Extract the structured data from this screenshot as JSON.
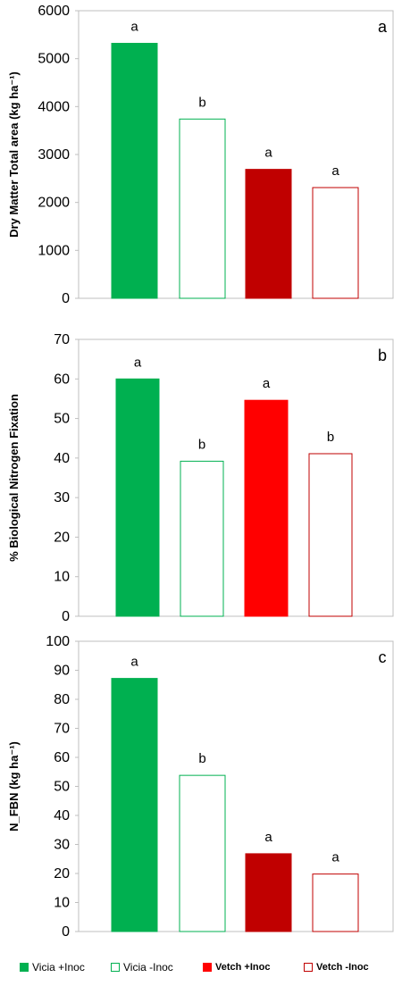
{
  "chart_data": [
    {
      "type": "bar",
      "panel_letter": "a",
      "ylabel": "Dry Matter Total area  (kg ha⁻¹)",
      "ylim": [
        0,
        6000
      ],
      "yticks": [
        0,
        1000,
        2000,
        3000,
        4000,
        5000,
        6000
      ],
      "grid": false,
      "categories": [
        "Vicia +Inoc",
        "Vicia -Inoc",
        "Vetch +Inoc",
        "Vetch -Inoc"
      ],
      "values": [
        5320,
        3740,
        2690,
        2310
      ],
      "letters": [
        "a",
        "b",
        "a",
        "a"
      ],
      "colors": [
        "#00b050",
        "none",
        "#c00000",
        "none"
      ],
      "strokes": [
        "#00b050",
        "#00b050",
        "#c00000",
        "#c00000"
      ]
    },
    {
      "type": "bar",
      "panel_letter": "b",
      "ylabel": "%  Biological Nitrogen Fixation",
      "ylim": [
        0,
        70
      ],
      "yticks": [
        0,
        10,
        20,
        30,
        40,
        50,
        60,
        70
      ],
      "grid": false,
      "categories": [
        "Vicia +Inoc",
        "Vicia -Inoc",
        "Vetch +Inoc",
        "Vetch -Inoc"
      ],
      "values": [
        60.0,
        39.2,
        54.6,
        41.1
      ],
      "letters": [
        "a",
        "b",
        "a",
        "b"
      ],
      "colors": [
        "#00b050",
        "none",
        "#ff0000",
        "none"
      ],
      "strokes": [
        "#00b050",
        "#00b050",
        "#ff0000",
        "#c00000"
      ]
    },
    {
      "type": "bar",
      "panel_letter": "c",
      "ylabel": "N_FBN  (kg ha⁻¹)",
      "ylim": [
        0,
        100
      ],
      "yticks": [
        0,
        10,
        20,
        30,
        40,
        50,
        60,
        70,
        80,
        90,
        100
      ],
      "grid": false,
      "categories": [
        "Vicia +Inoc",
        "Vicia -Inoc",
        "Vetch +Inoc",
        "Vetch -Inoc"
      ],
      "values": [
        87.2,
        53.8,
        26.8,
        19.8
      ],
      "letters": [
        "a",
        "b",
        "a",
        "a"
      ],
      "colors": [
        "#00b050",
        "none",
        "#c00000",
        "none"
      ],
      "strokes": [
        "#00b050",
        "#00b050",
        "#c00000",
        "#c00000"
      ]
    }
  ],
  "legend": {
    "placement": "bottom",
    "items": [
      {
        "label": "Vicia +Inoc",
        "fill": "#00b050",
        "stroke": "#00b050"
      },
      {
        "label": "Vicia -Inoc",
        "fill": "none",
        "stroke": "#00b050"
      },
      {
        "label": "Vetch +Inoc",
        "fill": "#ff0000",
        "stroke": "#ff0000"
      },
      {
        "label": "Vetch -Inoc",
        "fill": "none",
        "stroke": "#c00000"
      }
    ]
  }
}
